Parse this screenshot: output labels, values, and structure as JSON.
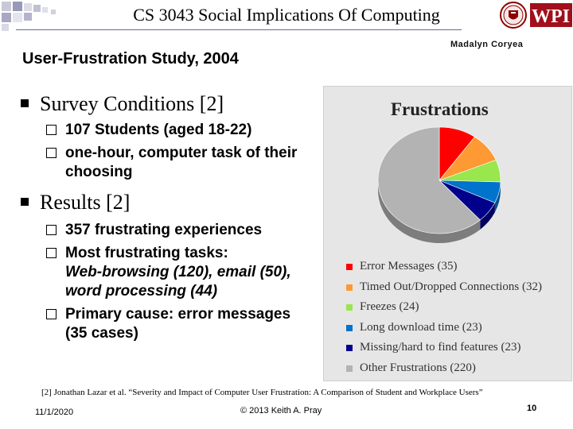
{
  "header": {
    "course_title": "CS 3043 Social Implications Of Computing",
    "logo_text": "WPI"
  },
  "slide": {
    "title": "User-Frustration Study, 2004",
    "author": "Madalyn Coryea",
    "sections": [
      {
        "heading": "Survey Conditions [2]",
        "items": [
          "107 Students (aged 18-22)",
          "one-hour, computer task of their choosing"
        ]
      },
      {
        "heading": "Results [2]",
        "items": [
          "357 frustrating experiences",
          "Most frustrating tasks:",
          "Web-browsing (120), email (50), word processing (44)",
          "Primary cause:  error messages (35 cases)"
        ]
      }
    ]
  },
  "chart_data": {
    "type": "pie",
    "title": "Frustrations",
    "legend_position": "bottom",
    "slices": [
      {
        "label": "Error Messages (35)",
        "value": 35,
        "color": "#ff0000"
      },
      {
        "label": "Timed Out/Dropped Connections (32)",
        "value": 32,
        "color": "#ff9933"
      },
      {
        "label": "Freezes (24)",
        "value": 24,
        "color": "#99e64d"
      },
      {
        "label": "Long download time (23)",
        "value": 23,
        "color": "#0073cc"
      },
      {
        "label": "Missing/hard to find features (23)",
        "value": 23,
        "color": "#00008b"
      },
      {
        "label": "Other Frustrations (220)",
        "value": 220,
        "color": "#b3b3b3"
      }
    ]
  },
  "footer": {
    "reference": "[2] Jonathan Lazar et al. “Severity and Impact of Computer User Frustration: A Comparison of Student and Workplace Users”",
    "date": "11/1/2020",
    "copyright": "© 2013 Keith A. Pray",
    "page_number": "10"
  }
}
